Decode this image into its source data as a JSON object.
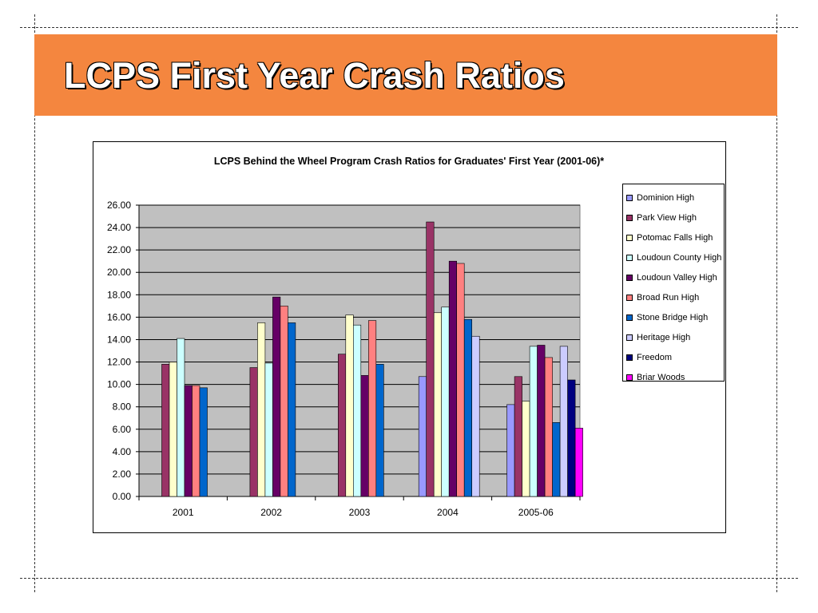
{
  "slide": {
    "title": "LCPS First Year Crash Ratios",
    "banner_color": "#f4863f"
  },
  "chart_data": {
    "type": "bar",
    "title": "LCPS Behind the Wheel Program Crash Ratios for Graduates' First Year (2001-06)*",
    "xlabel": "",
    "ylabel": "",
    "ylim": [
      0,
      26
    ],
    "yticks": [
      "0.00",
      "2.00",
      "4.00",
      "6.00",
      "8.00",
      "10.00",
      "12.00",
      "14.00",
      "16.00",
      "18.00",
      "20.00",
      "22.00",
      "24.00",
      "26.00"
    ],
    "grid": true,
    "plot_background": "#c0c0c0",
    "legend_position": "right",
    "categories": [
      "2001",
      "2002",
      "2003",
      "2004",
      "2005-06"
    ],
    "series": [
      {
        "name": "Dominion High",
        "color": "#9999ff",
        "values": [
          null,
          null,
          null,
          10.7,
          8.2
        ]
      },
      {
        "name": "Park View  High",
        "color": "#993366",
        "values": [
          11.8,
          11.5,
          12.7,
          24.5,
          10.7
        ]
      },
      {
        "name": "Potomac Falls High",
        "color": "#ffffcc",
        "values": [
          12.0,
          15.5,
          16.2,
          16.4,
          8.5
        ]
      },
      {
        "name": "Loudoun County High",
        "color": "#ccffff",
        "values": [
          14.1,
          11.9,
          15.3,
          16.9,
          13.4
        ]
      },
      {
        "name": "Loudoun Valley High",
        "color": "#660066",
        "values": [
          9.9,
          17.8,
          10.8,
          21.0,
          13.5
        ]
      },
      {
        "name": "Broad Run High",
        "color": "#ff8080",
        "values": [
          9.9,
          17.0,
          15.7,
          20.8,
          12.4
        ]
      },
      {
        "name": "Stone Bridge High",
        "color": "#0066cc",
        "values": [
          9.7,
          15.5,
          11.8,
          15.8,
          6.6
        ]
      },
      {
        "name": "Heritage High",
        "color": "#ccccff",
        "values": [
          null,
          null,
          null,
          14.3,
          13.4
        ]
      },
      {
        "name": "Freedom",
        "color": "#000080",
        "values": [
          null,
          null,
          null,
          null,
          10.4
        ]
      },
      {
        "name": "Briar Woods",
        "color": "#ff00ff",
        "values": [
          null,
          null,
          null,
          null,
          6.1
        ]
      }
    ]
  }
}
